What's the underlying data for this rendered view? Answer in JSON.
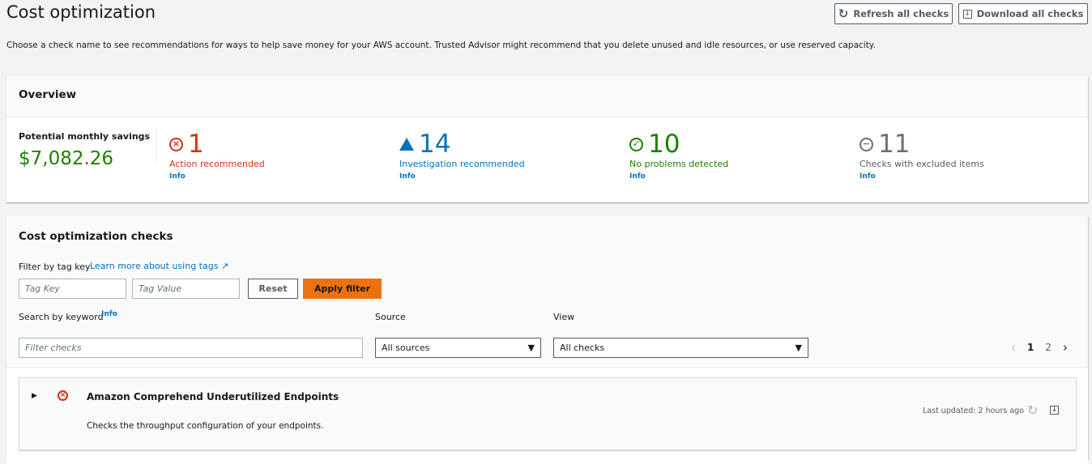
{
  "page": {
    "title": "Cost optimization",
    "description": "Choose a check name to see recommendations for ways to help save money for your AWS account. Trusted Advisor might recommend that you delete unused and idle resources, or use reserved capacity.",
    "refresh_label": "Refresh all checks",
    "download_label": "Download all checks"
  },
  "overview": {
    "title": "Overview",
    "savings_label": "Potential monthly savings",
    "savings_value": "$7,082.26",
    "stats": [
      {
        "count": "1",
        "label": "Action recommended",
        "info": "Info",
        "color": "#d13212",
        "icon": "error-icon"
      },
      {
        "count": "14",
        "label": "Investigation recommended",
        "info": "Info",
        "color": "#0073bb",
        "icon": "warning-icon"
      },
      {
        "count": "10",
        "label": "No problems detected",
        "info": "Info",
        "color": "#1d8102",
        "icon": "check-icon"
      },
      {
        "count": "11",
        "label": "Checks with excluded items",
        "info": "Info",
        "color": "#687078",
        "icon": "excluded-icon"
      }
    ]
  },
  "checks": {
    "title": "Cost optimization checks",
    "filter_label": "Filter by tag key",
    "learn_more": "Learn more about using tags",
    "tag_key_placeholder": "Tag Key",
    "tag_value_placeholder": "Tag Value",
    "reset_label": "Reset",
    "apply_label": "Apply filter",
    "search_label": "Search by keyword",
    "search_info": "Info",
    "search_placeholder": "Filter checks",
    "source_label": "Source",
    "source_value": "All sources",
    "view_label": "View",
    "view_value": "All checks",
    "pages": [
      "1",
      "2"
    ],
    "current_page": "1",
    "items": [
      {
        "name": "Amazon Comprehend Underutilized Endpoints",
        "description": "Checks the throughput configuration of your endpoints.",
        "last_updated": "Last updated: 2 hours ago",
        "status": "error"
      }
    ]
  }
}
